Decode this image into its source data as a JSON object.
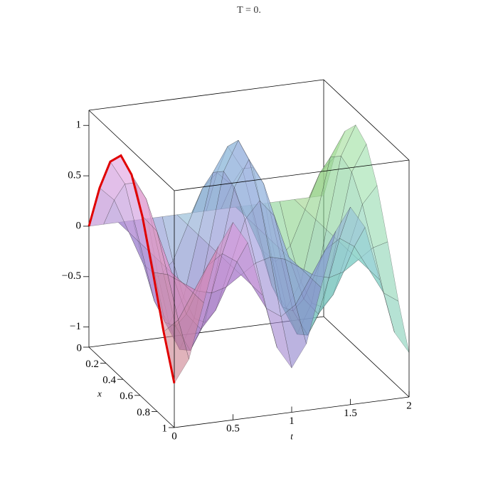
{
  "chart_data": {
    "type": "surface3d",
    "title": "T = 0.",
    "xlabel": "x",
    "tlabel": "t",
    "x": [
      0,
      0.125,
      0.25,
      0.375,
      0.5,
      0.625,
      0.75,
      0.875,
      1
    ],
    "t": [
      0,
      0.125,
      0.25,
      0.375,
      0.5,
      0.625,
      0.75,
      0.875,
      1,
      1.125,
      1.25,
      1.375,
      1.5,
      1.625,
      1.75,
      1.875,
      2
    ],
    "z": [
      [
        0,
        0,
        0,
        0,
        0,
        0,
        0,
        0,
        0,
        0,
        0,
        0,
        0,
        0,
        0,
        0,
        0
      ],
      [
        0.48,
        0.34,
        0,
        -0.34,
        -0.48,
        -0.34,
        0,
        0.34,
        0.48,
        0.34,
        0,
        -0.34,
        -0.48,
        -0.34,
        0,
        0.34,
        0.48
      ],
      [
        0.84,
        0.6,
        0,
        -0.6,
        -0.84,
        -0.6,
        0,
        0.6,
        0.84,
        0.6,
        0,
        -0.6,
        -0.84,
        -0.6,
        0,
        0.6,
        0.84
      ],
      [
        1,
        0.71,
        0,
        -0.71,
        -1,
        -0.71,
        0,
        0.71,
        1,
        0.71,
        0,
        -0.71,
        -1,
        -0.71,
        0,
        0.71,
        1
      ],
      [
        0.91,
        0.65,
        0,
        -0.65,
        -0.91,
        -0.65,
        0,
        0.65,
        0.91,
        0.65,
        0,
        -0.65,
        -0.91,
        -0.65,
        0,
        0.65,
        0.91
      ],
      [
        0.6,
        0.43,
        0,
        -0.43,
        -0.6,
        -0.43,
        0,
        0.43,
        0.6,
        0.43,
        0,
        -0.43,
        -0.6,
        -0.43,
        0,
        0.43,
        0.6
      ],
      [
        0.14,
        0.1,
        0,
        -0.1,
        -0.14,
        -0.1,
        0,
        0.1,
        0.14,
        0.1,
        0,
        -0.1,
        -0.14,
        -0.1,
        0,
        0.1,
        0.14
      ],
      [
        -0.35,
        -0.25,
        0,
        0.25,
        0.35,
        0.25,
        0,
        -0.25,
        -0.35,
        -0.25,
        0,
        0.25,
        0.35,
        0.25,
        0,
        -0.25,
        -0.35
      ],
      [
        -0.76,
        -0.54,
        0,
        0.54,
        0.76,
        0.54,
        0,
        -0.54,
        -0.76,
        -0.54,
        0,
        0.54,
        0.76,
        0.54,
        0,
        -0.54,
        -0.76
      ]
    ],
    "highlight_color": "#e00000",
    "xlim": [
      0,
      1
    ],
    "tlim": [
      0,
      2
    ],
    "zlim": [
      -1.2,
      1.15
    ],
    "xticks": [
      0,
      0.2,
      0.4,
      0.6,
      0.8,
      1
    ],
    "tticks": [
      0,
      0.5,
      1,
      1.5,
      2
    ],
    "zticks": [
      {
        "value": -1,
        "label": "−1"
      },
      {
        "value": -0.5,
        "label": "−0.5"
      },
      0,
      0.5,
      1
    ]
  }
}
